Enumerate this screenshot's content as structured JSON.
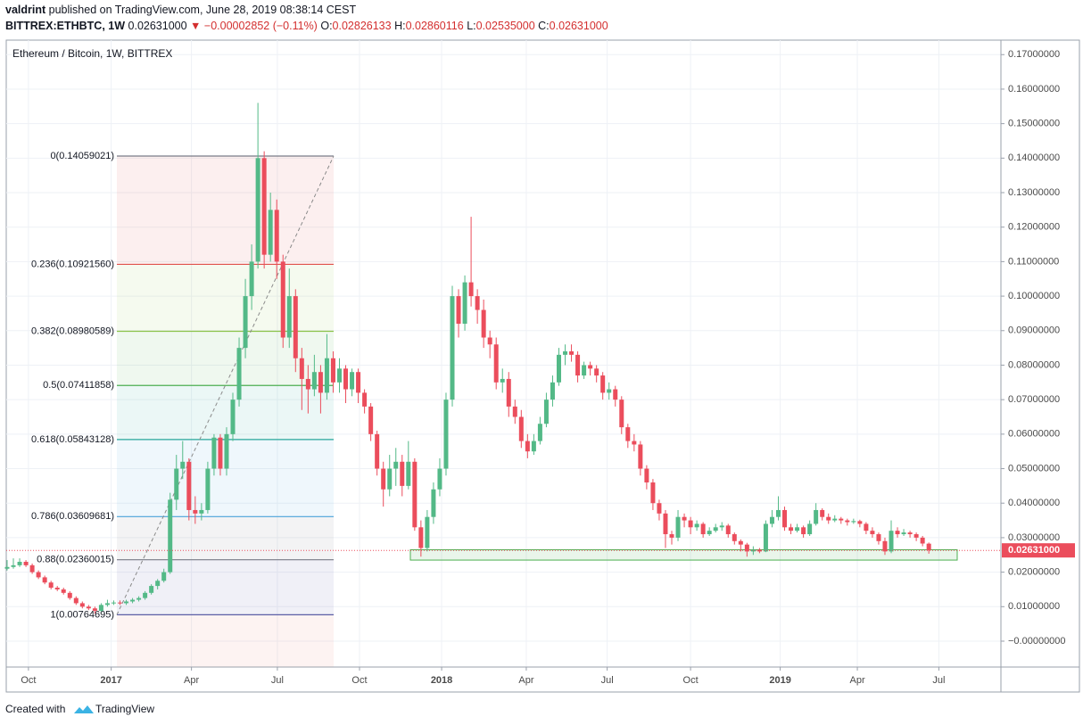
{
  "header": {
    "author": "valdrint",
    "published": "published on TradingView.com, June 28, 2019 08:38:14 CEST",
    "symbol": "BITTREX:ETHBTC, 1W",
    "price": "0.02631000",
    "change": "▼ −0.00002852 (−0.11%)",
    "ohlc": [
      {
        "key": "O:",
        "value": "0.02826133"
      },
      {
        "key": "H:",
        "value": "0.02860116"
      },
      {
        "key": "L:",
        "value": "0.02535000"
      },
      {
        "key": "C:",
        "value": "0.02631000"
      }
    ]
  },
  "footer": {
    "created": "Created with",
    "brand": "TradingView"
  },
  "chart_data": {
    "type": "candlestick",
    "title": "Ethereum / Bitcoin, 1W, BITTREX",
    "up_color": "#53b987",
    "down_color": "#eb4d5c",
    "grid": true,
    "xlim": [
      -0.14,
      158.5
    ],
    "xticks": [
      {
        "value": 3.4,
        "label": "Oct"
      },
      {
        "value": 16.6,
        "label": "2017"
      },
      {
        "value": 29.4,
        "label": "Apr"
      },
      {
        "value": 43.1,
        "label": "Jul"
      },
      {
        "value": 56.2,
        "label": "Oct"
      },
      {
        "value": 69.3,
        "label": "2018"
      },
      {
        "value": 82.8,
        "label": "Apr"
      },
      {
        "value": 95.7,
        "label": "Jul"
      },
      {
        "value": 109,
        "label": "Oct"
      },
      {
        "value": 123.3,
        "label": "2019"
      },
      {
        "value": 135.6,
        "label": "Apr"
      },
      {
        "value": 148.6,
        "label": "Jul"
      }
    ],
    "ylim": [
      -0.0075,
      0.1742
    ],
    "yticks": [
      {
        "value": 0,
        "label": "−0.00000000"
      },
      {
        "value": 0.01,
        "label": "0.01000000"
      },
      {
        "value": 0.02,
        "label": "0.02000000"
      },
      {
        "value": 0.03,
        "label": "0.03000000"
      },
      {
        "value": 0.04,
        "label": "0.04000000"
      },
      {
        "value": 0.05,
        "label": "0.05000000"
      },
      {
        "value": 0.06,
        "label": "0.06000000"
      },
      {
        "value": 0.07,
        "label": "0.07000000"
      },
      {
        "value": 0.08,
        "label": "0.08000000"
      },
      {
        "value": 0.09,
        "label": "0.09000000"
      },
      {
        "value": 0.1,
        "label": "0.10000000"
      },
      {
        "value": 0.11,
        "label": "0.11000000"
      },
      {
        "value": 0.12,
        "label": "0.12000000"
      },
      {
        "value": 0.13,
        "label": "0.13000000"
      },
      {
        "value": 0.14,
        "label": "0.14000000"
      },
      {
        "value": 0.15,
        "label": "0.15000000"
      },
      {
        "value": 0.16,
        "label": "0.16000000"
      },
      {
        "value": 0.17,
        "label": "0.17000000"
      }
    ],
    "fib_levels": [
      {
        "value": 0.14059021,
        "label": "0(0.14059021)",
        "color": "#787b86"
      },
      {
        "value": 0.1092156,
        "label": "0.236(0.10921560)",
        "color": "#e0524d"
      },
      {
        "value": 0.08980589,
        "label": "0.382(0.08980589)",
        "color": "#8bc34a"
      },
      {
        "value": 0.07411858,
        "label": "0.5(0.07411858)",
        "color": "#4caf50"
      },
      {
        "value": 0.05843128,
        "label": "0.618(0.05843128)",
        "color": "#26a69a"
      },
      {
        "value": 0.03609681,
        "label": "0.786(0.03609681)",
        "color": "#4ba3d9"
      },
      {
        "value": 0.02360015,
        "label": "0.88(0.02360015)",
        "color": "#787b86"
      },
      {
        "value": 0.00764695,
        "label": "1(0.00764695)",
        "color": "#5b5ea6"
      }
    ],
    "support_zone": [
      0.0235,
      0.0265
    ],
    "last_price": {
      "value": 0.02631,
      "label": "0.02631000"
    },
    "open": [
      0.021,
      0.0215,
      0.022,
      0.023,
      0.022,
      0.02,
      0.0185,
      0.017,
      0.0155,
      0.015,
      0.014,
      0.0125,
      0.011,
      0.01,
      0.0095,
      0.0088,
      0.0105,
      0.011,
      0.0112,
      0.011,
      0.0115,
      0.012,
      0.0125,
      0.014,
      0.016,
      0.0175,
      0.02,
      0.041,
      0.05,
      0.052,
      0.038,
      0.037,
      0.038,
      0.05,
      0.059,
      0.05,
      0.06,
      0.07,
      0.085,
      0.1,
      0.11,
      0.14,
      0.112,
      0.125,
      0.11,
      0.088,
      0.1,
      0.082,
      0.076,
      0.073,
      0.078,
      0.072,
      0.082,
      0.075,
      0.079,
      0.073,
      0.078,
      0.072,
      0.068,
      0.06,
      0.05,
      0.044,
      0.05,
      0.052,
      0.045,
      0.052,
      0.033,
      0.027,
      0.036,
      0.044,
      0.05,
      0.07,
      0.1,
      0.092,
      0.104,
      0.1,
      0.096,
      0.088,
      0.086,
      0.075,
      0.076,
      0.068,
      0.065,
      0.058,
      0.055,
      0.058,
      0.063,
      0.07,
      0.075,
      0.083,
      0.084,
      0.083,
      0.077,
      0.08,
      0.079,
      0.077,
      0.072,
      0.073,
      0.07,
      0.062,
      0.058,
      0.057,
      0.05,
      0.046,
      0.04,
      0.037,
      0.031,
      0.03,
      0.036,
      0.035,
      0.033,
      0.034,
      0.031,
      0.032,
      0.033,
      0.0335,
      0.031,
      0.029,
      0.028,
      0.026,
      0.0265,
      0.026,
      0.034,
      0.036,
      0.038,
      0.033,
      0.032,
      0.033,
      0.031,
      0.034,
      0.038,
      0.036,
      0.035,
      0.0355,
      0.035,
      0.0345,
      0.0348,
      0.034,
      0.032,
      0.031,
      0.029,
      0.026,
      0.032,
      0.031,
      0.0315,
      0.031,
      0.03,
      0.02826133
    ],
    "high": [
      0.0235,
      0.024,
      0.024,
      0.0235,
      0.0225,
      0.0205,
      0.019,
      0.0175,
      0.016,
      0.0155,
      0.0145,
      0.013,
      0.0115,
      0.0105,
      0.01,
      0.011,
      0.012,
      0.0118,
      0.0118,
      0.012,
      0.0125,
      0.013,
      0.0145,
      0.0165,
      0.018,
      0.021,
      0.043,
      0.054,
      0.058,
      0.053,
      0.042,
      0.04,
      0.052,
      0.06,
      0.06,
      0.062,
      0.072,
      0.088,
      0.105,
      0.115,
      0.156,
      0.142,
      0.13,
      0.128,
      0.112,
      0.108,
      0.102,
      0.085,
      0.08,
      0.083,
      0.08,
      0.089,
      0.084,
      0.082,
      0.08,
      0.079,
      0.079,
      0.073,
      0.069,
      0.061,
      0.052,
      0.054,
      0.056,
      0.054,
      0.058,
      0.053,
      0.035,
      0.038,
      0.046,
      0.053,
      0.072,
      0.103,
      0.102,
      0.106,
      0.123,
      0.102,
      0.099,
      0.09,
      0.088,
      0.079,
      0.078,
      0.07,
      0.067,
      0.06,
      0.06,
      0.065,
      0.072,
      0.077,
      0.085,
      0.086,
      0.086,
      0.084,
      0.081,
      0.081,
      0.08,
      0.078,
      0.075,
      0.074,
      0.071,
      0.063,
      0.06,
      0.058,
      0.051,
      0.047,
      0.041,
      0.038,
      0.032,
      0.038,
      0.037,
      0.036,
      0.035,
      0.0345,
      0.033,
      0.034,
      0.0345,
      0.034,
      0.0315,
      0.0295,
      0.0285,
      0.0275,
      0.027,
      0.035,
      0.038,
      0.042,
      0.039,
      0.034,
      0.034,
      0.0335,
      0.035,
      0.04,
      0.0385,
      0.037,
      0.0365,
      0.036,
      0.0355,
      0.0355,
      0.0352,
      0.0345,
      0.033,
      0.0315,
      0.03,
      0.035,
      0.033,
      0.0325,
      0.032,
      0.0315,
      0.0305,
      0.02860116
    ],
    "low": [
      0.0205,
      0.021,
      0.0215,
      0.0215,
      0.0195,
      0.018,
      0.0165,
      0.015,
      0.0145,
      0.0135,
      0.012,
      0.0105,
      0.0095,
      0.009,
      0.008,
      0.0085,
      0.01,
      0.0105,
      0.0105,
      0.0105,
      0.011,
      0.0115,
      0.012,
      0.0135,
      0.015,
      0.017,
      0.0195,
      0.038,
      0.047,
      0.035,
      0.034,
      0.035,
      0.037,
      0.048,
      0.048,
      0.048,
      0.058,
      0.068,
      0.082,
      0.096,
      0.108,
      0.108,
      0.11,
      0.105,
      0.085,
      0.085,
      0.078,
      0.067,
      0.066,
      0.071,
      0.066,
      0.07,
      0.072,
      0.072,
      0.069,
      0.071,
      0.069,
      0.066,
      0.058,
      0.048,
      0.039,
      0.042,
      0.045,
      0.042,
      0.044,
      0.032,
      0.0245,
      0.026,
      0.034,
      0.042,
      0.048,
      0.068,
      0.088,
      0.09,
      0.097,
      0.092,
      0.085,
      0.082,
      0.073,
      0.072,
      0.065,
      0.063,
      0.056,
      0.053,
      0.054,
      0.057,
      0.062,
      0.068,
      0.074,
      0.08,
      0.081,
      0.075,
      0.076,
      0.077,
      0.075,
      0.07,
      0.07,
      0.068,
      0.06,
      0.056,
      0.055,
      0.048,
      0.044,
      0.038,
      0.035,
      0.027,
      0.028,
      0.029,
      0.033,
      0.031,
      0.032,
      0.03,
      0.0305,
      0.0315,
      0.032,
      0.03,
      0.028,
      0.026,
      0.0245,
      0.025,
      0.0255,
      0.0258,
      0.033,
      0.035,
      0.032,
      0.031,
      0.0315,
      0.03,
      0.0305,
      0.0335,
      0.035,
      0.034,
      0.0345,
      0.034,
      0.0335,
      0.034,
      0.033,
      0.031,
      0.03,
      0.028,
      0.025,
      0.0255,
      0.03,
      0.0305,
      0.03,
      0.029,
      0.0275,
      0.02535
    ],
    "close": [
      0.0215,
      0.022,
      0.023,
      0.022,
      0.02,
      0.0185,
      0.017,
      0.0155,
      0.015,
      0.014,
      0.0125,
      0.011,
      0.01,
      0.0095,
      0.0088,
      0.0105,
      0.011,
      0.0112,
      0.011,
      0.0115,
      0.012,
      0.0125,
      0.014,
      0.016,
      0.0175,
      0.02,
      0.041,
      0.05,
      0.052,
      0.038,
      0.037,
      0.038,
      0.05,
      0.059,
      0.05,
      0.06,
      0.07,
      0.085,
      0.1,
      0.11,
      0.14,
      0.112,
      0.125,
      0.11,
      0.088,
      0.1,
      0.082,
      0.076,
      0.073,
      0.078,
      0.072,
      0.082,
      0.075,
      0.079,
      0.073,
      0.078,
      0.072,
      0.068,
      0.06,
      0.05,
      0.044,
      0.05,
      0.052,
      0.045,
      0.052,
      0.033,
      0.027,
      0.036,
      0.044,
      0.05,
      0.07,
      0.1,
      0.092,
      0.104,
      0.1,
      0.096,
      0.088,
      0.086,
      0.075,
      0.076,
      0.068,
      0.065,
      0.058,
      0.055,
      0.058,
      0.063,
      0.07,
      0.075,
      0.083,
      0.084,
      0.083,
      0.077,
      0.08,
      0.079,
      0.077,
      0.072,
      0.073,
      0.07,
      0.062,
      0.058,
      0.057,
      0.05,
      0.046,
      0.04,
      0.037,
      0.031,
      0.03,
      0.036,
      0.035,
      0.033,
      0.034,
      0.031,
      0.032,
      0.033,
      0.0335,
      0.031,
      0.029,
      0.028,
      0.026,
      0.0265,
      0.026,
      0.034,
      0.036,
      0.038,
      0.033,
      0.032,
      0.033,
      0.031,
      0.034,
      0.038,
      0.036,
      0.035,
      0.0355,
      0.035,
      0.0345,
      0.0348,
      0.034,
      0.032,
      0.031,
      0.029,
      0.026,
      0.032,
      0.031,
      0.0315,
      0.031,
      0.03,
      0.0283,
      0.02631
    ]
  }
}
